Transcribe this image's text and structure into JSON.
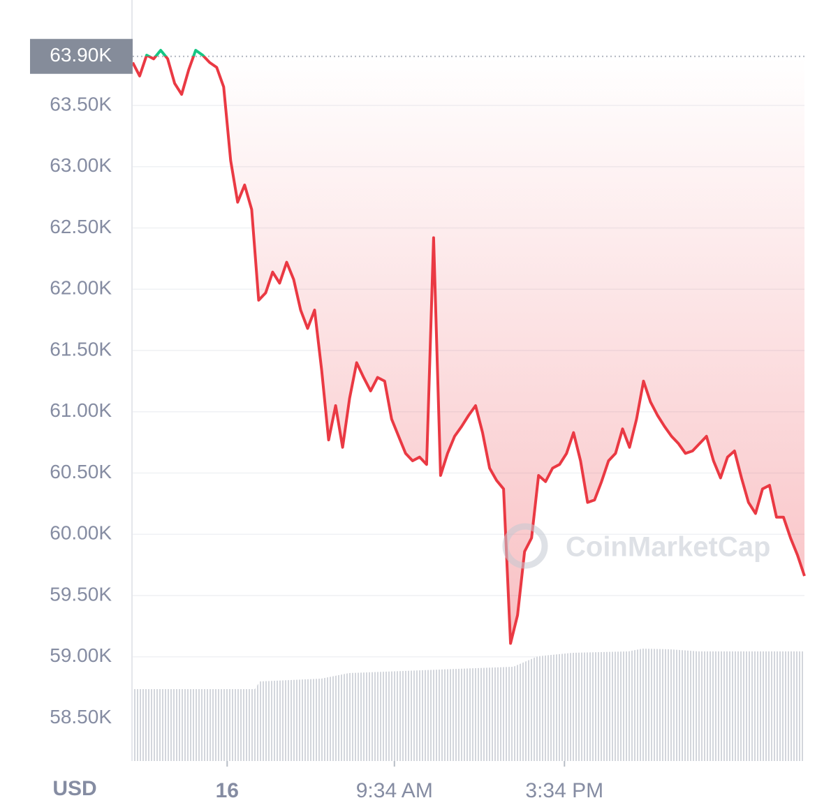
{
  "chart_data": {
    "type": "line",
    "y_axis_label": "USD",
    "watermark": "CoinMarketCap",
    "color": "#ea3943",
    "color_above": "#16c784",
    "grid": true,
    "reference": {
      "value": 63900,
      "label": "63.90K"
    },
    "xlim": [
      0,
      96
    ],
    "xticks": [
      {
        "value": 13.5,
        "label": "16"
      },
      {
        "value": 37.4,
        "label": "9:34 AM"
      },
      {
        "value": 61.7,
        "label": "3:34 PM"
      }
    ],
    "ylim": [
      58150,
      64360
    ],
    "yticks": [
      {
        "value": 58500,
        "label": "58.50K"
      },
      {
        "value": 59000,
        "label": "59.00K"
      },
      {
        "value": 59500,
        "label": "59.50K"
      },
      {
        "value": 60000,
        "label": "60.00K"
      },
      {
        "value": 60500,
        "label": "60.50K"
      },
      {
        "value": 61000,
        "label": "61.00K"
      },
      {
        "value": 61500,
        "label": "61.50K"
      },
      {
        "value": 62000,
        "label": "62.00K"
      },
      {
        "value": 62500,
        "label": "62.50K"
      },
      {
        "value": 63000,
        "label": "63.00K"
      },
      {
        "value": 63500,
        "label": "63.50K"
      }
    ],
    "values": [
      63850,
      63740,
      63910,
      63880,
      63950,
      63880,
      63680,
      63590,
      63790,
      63950,
      63910,
      63850,
      63810,
      63650,
      63050,
      62710,
      62850,
      62650,
      61910,
      61970,
      62140,
      62050,
      62220,
      62080,
      61830,
      61680,
      61830,
      61340,
      60770,
      61050,
      60710,
      61110,
      61400,
      61280,
      61170,
      61280,
      61250,
      60940,
      60800,
      60660,
      60600,
      60630,
      60570,
      62420,
      60480,
      60660,
      60800,
      60880,
      60970,
      61050,
      60830,
      60540,
      60440,
      60370,
      59110,
      59340,
      59860,
      59970,
      60480,
      60430,
      60540,
      60570,
      60660,
      60830,
      60600,
      60260,
      60280,
      60430,
      60600,
      60660,
      60860,
      60710,
      60940,
      61250,
      61080,
      60970,
      60880,
      60800,
      60740,
      60660,
      60680,
      60740,
      60800,
      60600,
      60460,
      60630,
      60680,
      60460,
      60260,
      60170,
      60370,
      60400,
      60140,
      60140,
      59970,
      59830,
      59660
    ]
  }
}
